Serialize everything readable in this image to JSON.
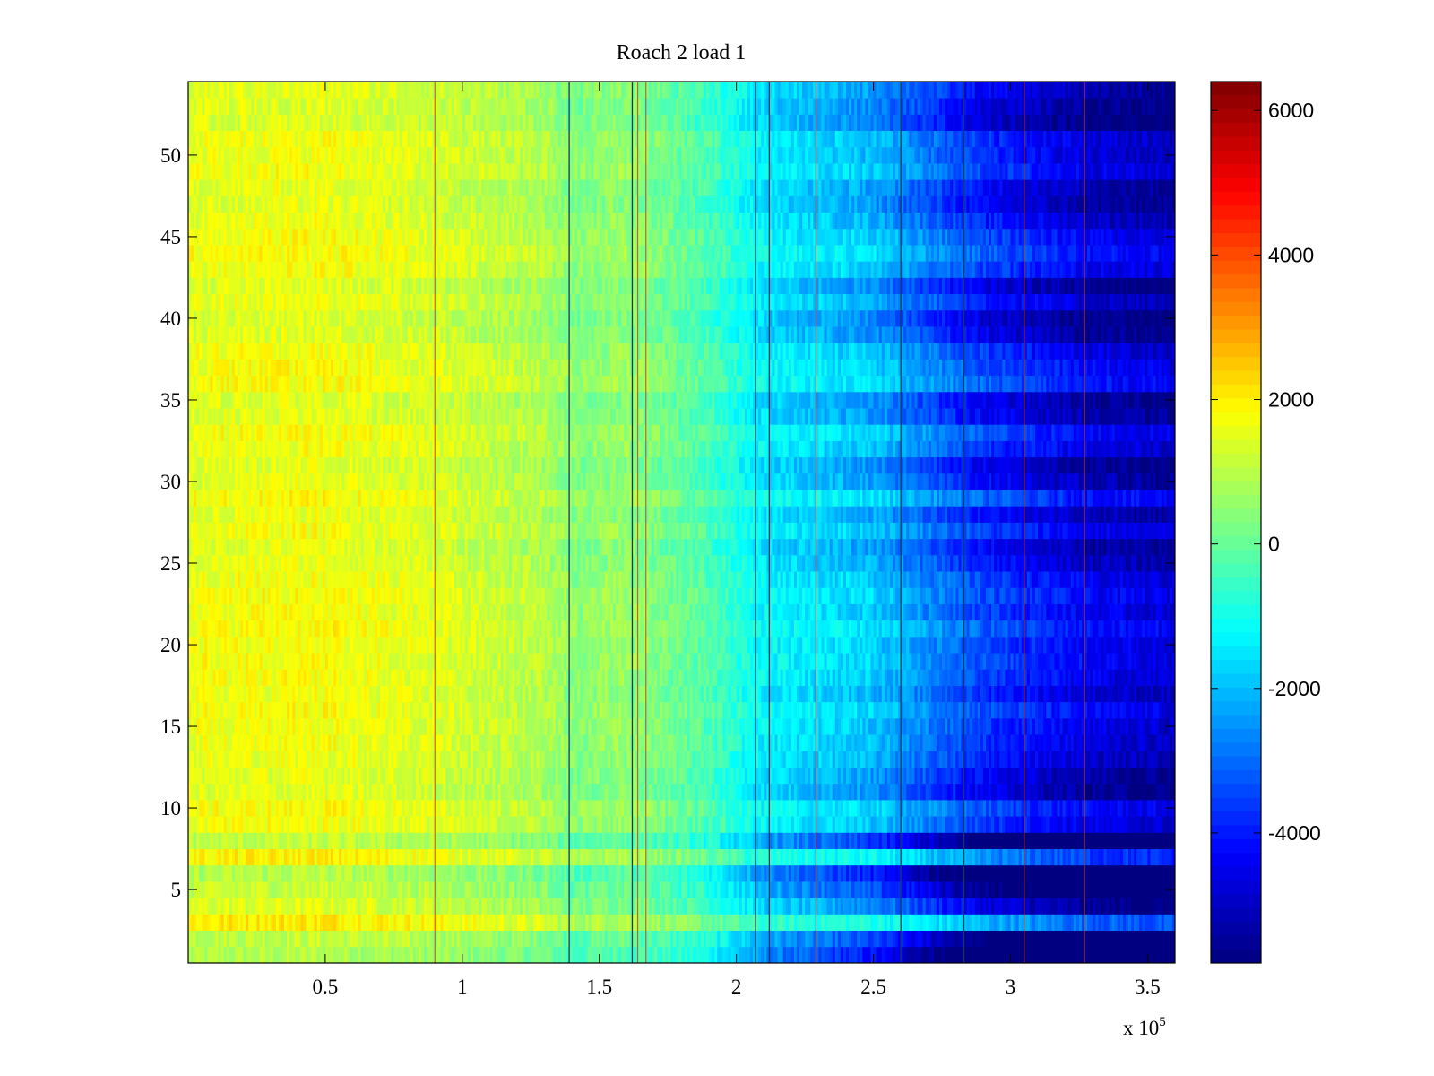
{
  "chart_data": {
    "type": "heatmap",
    "title": "Roach 2 load 1",
    "xlabel": "",
    "ylabel": "",
    "x_exponent_label": "x 10",
    "x_exponent_power": "5",
    "xlim": [
      0,
      3.6
    ],
    "ylim": [
      0.5,
      54.5
    ],
    "x_ticks": [
      0.5,
      1,
      1.5,
      2,
      2.5,
      3,
      3.5
    ],
    "x_tick_labels": [
      "0.5",
      "1",
      "1.5",
      "2",
      "2.5",
      "3",
      "3.5"
    ],
    "y_ticks": [
      5,
      10,
      15,
      20,
      25,
      30,
      35,
      40,
      45,
      50
    ],
    "y_tick_labels": [
      "5",
      "10",
      "15",
      "20",
      "25",
      "30",
      "35",
      "40",
      "45",
      "50"
    ],
    "rows": 54,
    "colormap": "jet",
    "color_range": [
      -5800,
      6400
    ],
    "colorbar_ticks": [
      -4000,
      -2000,
      0,
      2000,
      4000,
      6000
    ],
    "colorbar_tick_labels": [
      "-4000",
      "-2000",
      "0",
      "2000",
      "4000",
      "6000"
    ],
    "trend_x": [
      0,
      0.5,
      0.9,
      1.3,
      1.4,
      1.6,
      1.9,
      2.1,
      2.5,
      2.9,
      3.3,
      3.6
    ],
    "trend_value": [
      1700,
      1800,
      1500,
      1000,
      500,
      700,
      -200,
      -1200,
      -1700,
      -3300,
      -4300,
      -4600
    ],
    "row_offsets": [
      -3500,
      -2600,
      1200,
      -1300,
      -2400,
      -3300,
      700,
      -2800,
      -300,
      0,
      -1200,
      -1000,
      -600,
      -400,
      -300,
      0,
      -500,
      -200,
      0,
      -100,
      200,
      -200,
      0,
      -200,
      -700,
      -1000,
      -200,
      -800,
      200,
      -900,
      -1200,
      -300,
      0,
      -1000,
      -1200,
      200,
      0,
      -300,
      -1200,
      -1400,
      -600,
      -1300,
      -200,
      200,
      -100,
      -600,
      -1100,
      -900,
      -200,
      -500,
      -400,
      -1500,
      -1300,
      -1000
    ],
    "row_offset_ramp_start_x": 1.9,
    "row_offset_ramp_end_x": 2.9,
    "vertical_lines_dark": [
      1.39,
      1.62,
      2.07,
      2.12,
      2.6,
      2.83
    ],
    "vertical_lines_red": [
      0.9,
      1.67,
      1.64,
      2.29,
      3.05,
      3.27
    ]
  }
}
